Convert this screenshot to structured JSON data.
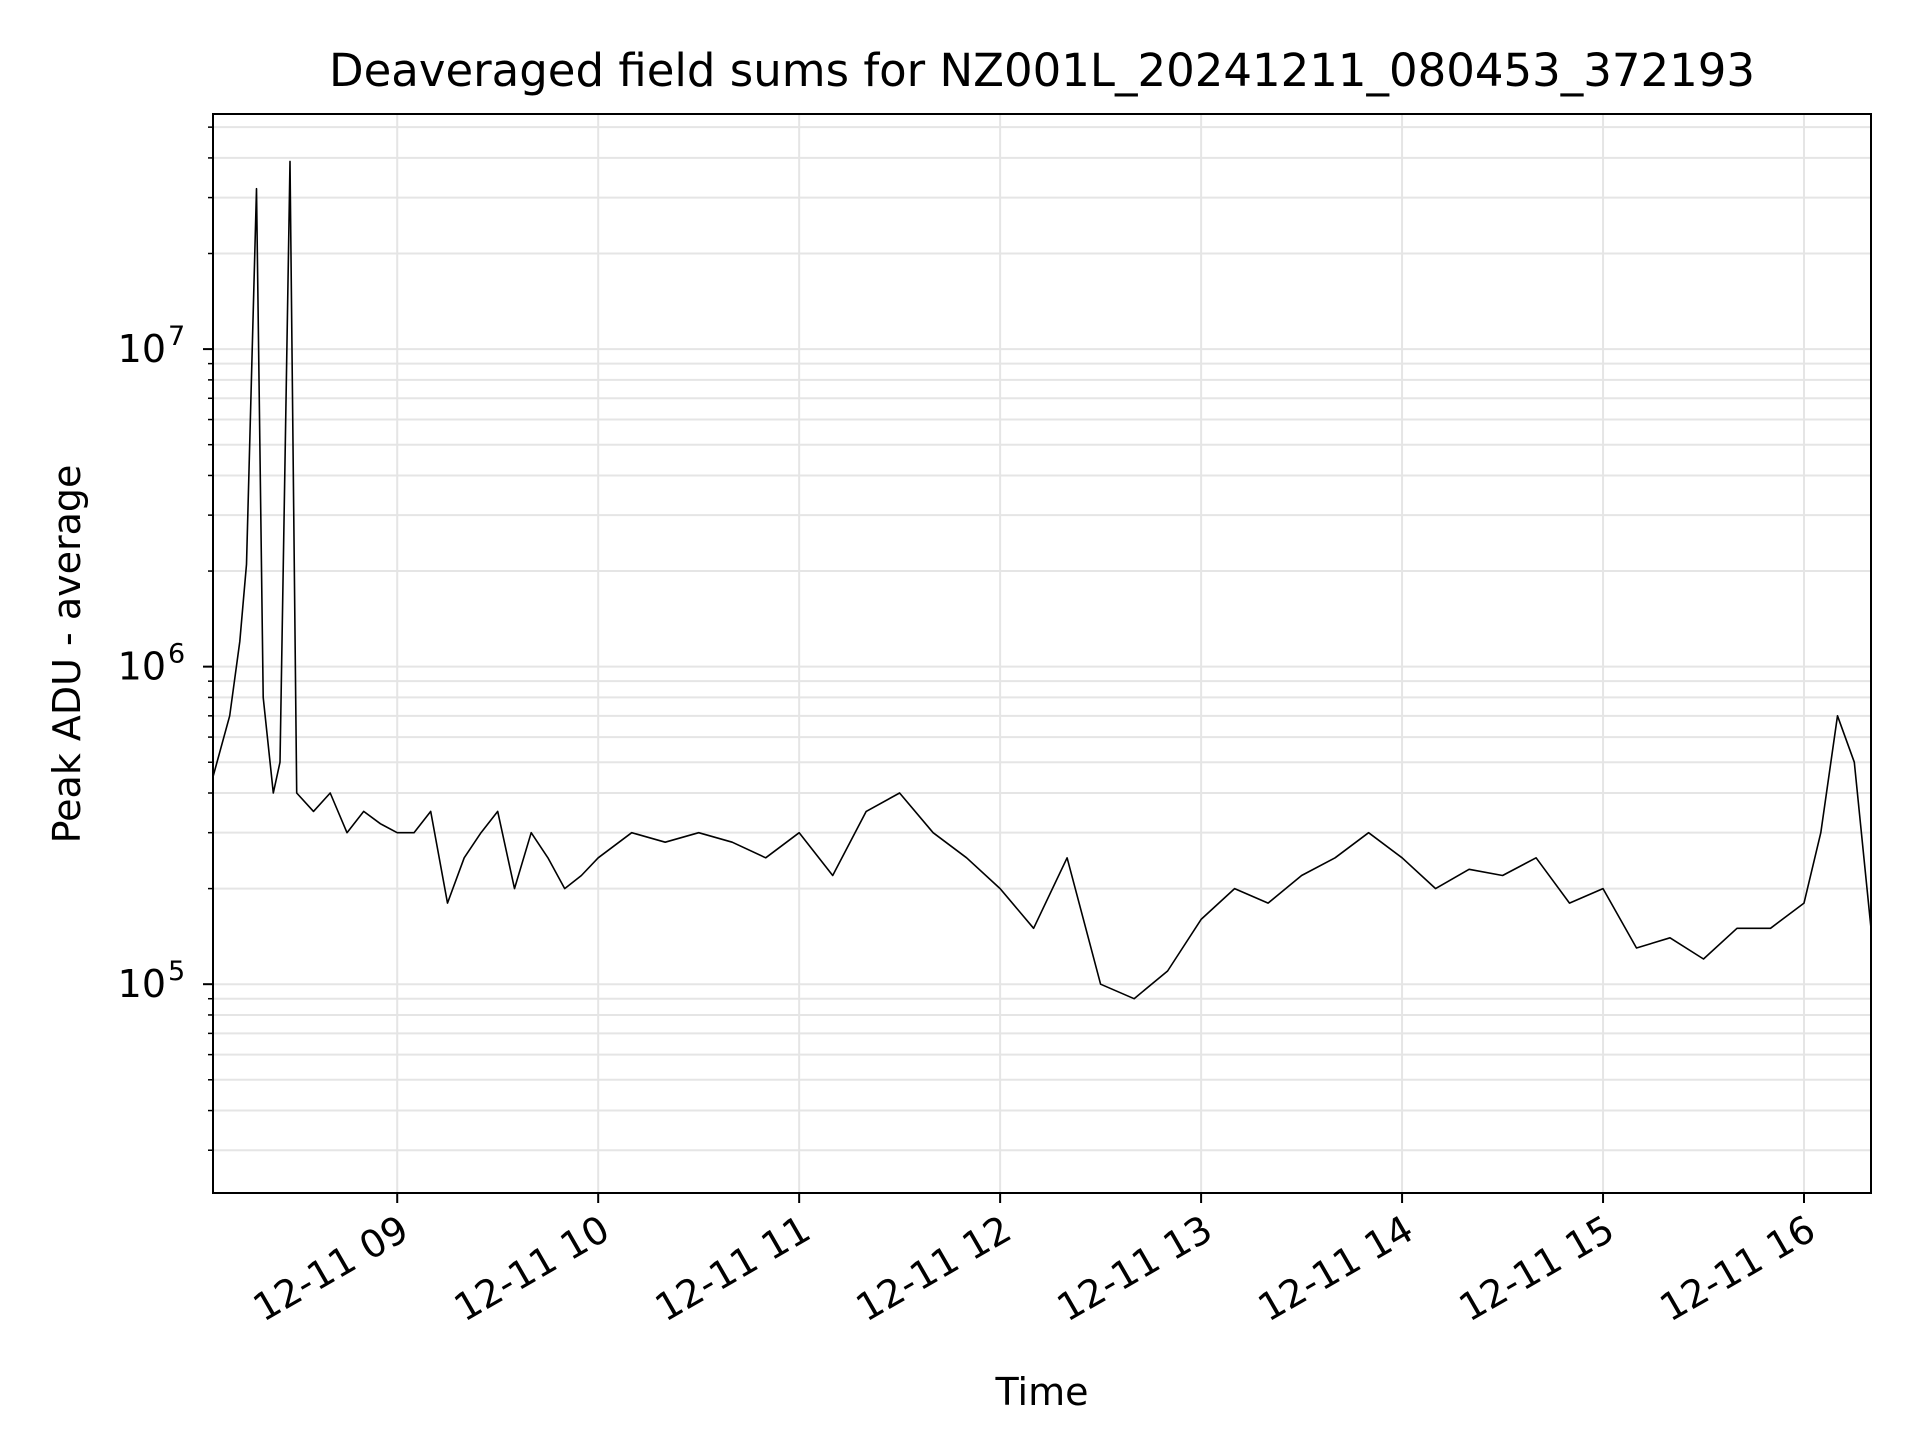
{
  "chart_data": {
    "type": "line",
    "title": "Deaveraged field sums for NZ001L_20241211_080453_372193",
    "xlabel": "Time",
    "ylabel": "Peak ADU - average",
    "yscale": "log",
    "xlim": [
      "2024-12-11 08:05",
      "2024-12-11 16:20"
    ],
    "ylim": [
      22000,
      55000000
    ],
    "grid": true,
    "line_color": "#000000",
    "grid_color": "#e5e5e5",
    "x_ticks": [
      "12-11 09",
      "12-11 10",
      "12-11 11",
      "12-11 12",
      "12-11 13",
      "12-11 14",
      "12-11 15",
      "12-11 16"
    ],
    "x_tick_hours": [
      9,
      10,
      11,
      12,
      13,
      14,
      15,
      16
    ],
    "y_ticks": [
      {
        "base": "10",
        "exp": "5",
        "value": 100000
      },
      {
        "base": "10",
        "exp": "6",
        "value": 1000000
      },
      {
        "base": "10",
        "exp": "7",
        "value": 10000000
      }
    ],
    "series": [
      {
        "x": [
          "2024-12-11 08:05",
          "2024-12-11 08:10",
          "2024-12-11 08:13",
          "2024-12-11 08:15",
          "2024-12-11 08:18",
          "2024-12-11 08:20",
          "2024-12-11 08:23",
          "2024-12-11 08:25",
          "2024-12-11 08:28",
          "2024-12-11 08:30",
          "2024-12-11 08:35",
          "2024-12-11 08:40",
          "2024-12-11 08:45",
          "2024-12-11 08:50",
          "2024-12-11 08:55",
          "2024-12-11 09:00",
          "2024-12-11 09:05",
          "2024-12-11 09:10",
          "2024-12-11 09:15",
          "2024-12-11 09:20",
          "2024-12-11 09:25",
          "2024-12-11 09:30",
          "2024-12-11 09:35",
          "2024-12-11 09:40",
          "2024-12-11 09:45",
          "2024-12-11 09:50",
          "2024-12-11 09:55",
          "2024-12-11 10:00",
          "2024-12-11 10:10",
          "2024-12-11 10:20",
          "2024-12-11 10:30",
          "2024-12-11 10:40",
          "2024-12-11 10:50",
          "2024-12-11 11:00",
          "2024-12-11 11:10",
          "2024-12-11 11:20",
          "2024-12-11 11:30",
          "2024-12-11 11:40",
          "2024-12-11 11:50",
          "2024-12-11 12:00",
          "2024-12-11 12:10",
          "2024-12-11 12:20",
          "2024-12-11 12:30",
          "2024-12-11 12:40",
          "2024-12-11 12:50",
          "2024-12-11 13:00",
          "2024-12-11 13:10",
          "2024-12-11 13:20",
          "2024-12-11 13:30",
          "2024-12-11 13:40",
          "2024-12-11 13:50",
          "2024-12-11 14:00",
          "2024-12-11 14:10",
          "2024-12-11 14:20",
          "2024-12-11 14:30",
          "2024-12-11 14:40",
          "2024-12-11 14:50",
          "2024-12-11 15:00",
          "2024-12-11 15:10",
          "2024-12-11 15:20",
          "2024-12-11 15:30",
          "2024-12-11 15:40",
          "2024-12-11 15:50",
          "2024-12-11 16:00",
          "2024-12-11 16:05",
          "2024-12-11 16:10",
          "2024-12-11 16:15",
          "2024-12-11 16:20"
        ],
        "y": [
          450000,
          700000,
          1200000,
          2100000,
          32000000,
          800000,
          400000,
          500000,
          39000000,
          400000,
          350000,
          400000,
          300000,
          350000,
          320000,
          300000,
          300000,
          350000,
          180000,
          250000,
          300000,
          350000,
          200000,
          300000,
          250000,
          200000,
          220000,
          250000,
          300000,
          280000,
          300000,
          280000,
          250000,
          300000,
          220000,
          350000,
          400000,
          300000,
          250000,
          200000,
          150000,
          250000,
          100000,
          90000,
          110000,
          160000,
          200000,
          180000,
          220000,
          250000,
          300000,
          250000,
          200000,
          230000,
          220000,
          250000,
          180000,
          200000,
          130000,
          140000,
          120000,
          150000,
          150000,
          180000,
          300000,
          700000,
          500000,
          150000
        ]
      }
    ]
  }
}
